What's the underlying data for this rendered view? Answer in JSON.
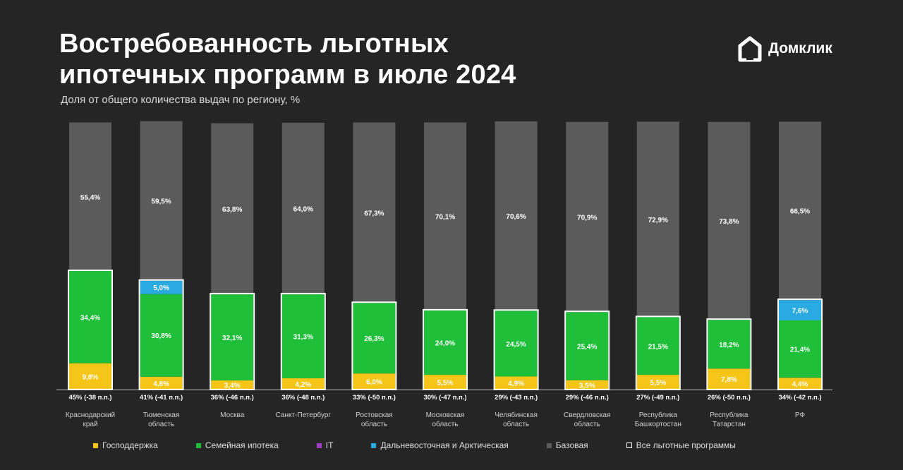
{
  "header": {
    "title": "Востребованность льготных\nипотечных программ в июле 2024",
    "subtitle": "Доля от общего количества выдач по региону, %"
  },
  "logo": {
    "text": "Домклик",
    "icon": "domclick-house-icon"
  },
  "colors": {
    "background": "#252525",
    "gosdderzhka": "#f5c518",
    "semeinaya": "#1fbf3a",
    "it": "#9b3fc0",
    "dalnevost": "#29abe2",
    "bazovaya": "#5b5b5b",
    "all_lgotnye_outline": "#ffffff"
  },
  "chart_data": {
    "type": "bar",
    "stacked": true,
    "unit": "%",
    "ylim": [
      0,
      100
    ],
    "categories": [
      "Краснодарский\nкрай",
      "Тюменская\nобласть",
      "Москва",
      "Санкт-Петербург",
      "Ростовская\nобласть",
      "Московская\nобласть",
      "Челябинская\nобласть",
      "Свердловская\nобласть",
      "Республика\nБашкортостан",
      "Республика\nТатарстан",
      "РФ"
    ],
    "totals_labels": [
      "45% (-38 п.п.)",
      "41% (-41 п.п.)",
      "36% (-46 п.п.)",
      "36% (-48 п.п.)",
      "33% (-50 п.п.)",
      "30% (-47 п.п.)",
      "29% (-43 п.п.)",
      "29% (-46 п.п.)",
      "27% (-49 п.п.)",
      "26% (-50 п.п.)",
      "34% (-42 п.п.)"
    ],
    "series": [
      {
        "name": "Господдержка",
        "key": "gosdderzhka",
        "values": [
          9.8,
          4.8,
          3.4,
          4.2,
          6.0,
          5.5,
          4.9,
          3.5,
          5.5,
          7.8,
          4.4
        ],
        "labels": [
          "9,8%",
          "4,8%",
          "3,4%",
          "4,2%",
          "6,0%",
          "5,5%",
          "4,9%",
          "3,5%",
          "5,5%",
          "7,8%",
          "4,4%"
        ]
      },
      {
        "name": "Семейная ипотека",
        "key": "semeinaya",
        "values": [
          34.4,
          30.8,
          32.1,
          31.3,
          26.3,
          24.0,
          24.5,
          25.4,
          21.5,
          18.2,
          21.4
        ],
        "labels": [
          "34,4%",
          "30,8%",
          "32,1%",
          "31,3%",
          "26,3%",
          "24,0%",
          "24,5%",
          "25,4%",
          "21,5%",
          "18,2%",
          "21,4%"
        ]
      },
      {
        "name": "IT",
        "key": "it",
        "values": [
          0,
          0,
          0,
          0,
          0,
          0,
          0,
          0,
          0,
          0,
          0
        ],
        "labels": [
          "",
          "",
          "",
          "",
          "",
          "",
          "",
          "",
          "",
          "",
          ""
        ]
      },
      {
        "name": "Дальневосточная и Арктическая",
        "key": "dalnevost",
        "values": [
          0,
          5.0,
          0,
          0,
          0,
          0,
          0,
          0,
          0,
          0,
          7.6
        ],
        "labels": [
          "",
          "5,0%",
          "",
          "",
          "",
          "",
          "",
          "",
          "",
          "",
          "7,6%"
        ]
      },
      {
        "name": "Базовая",
        "key": "bazovaya",
        "values": [
          55.4,
          59.5,
          63.8,
          64.0,
          67.3,
          70.1,
          70.6,
          70.9,
          72.9,
          73.8,
          66.5
        ],
        "labels": [
          "55,4%",
          "59,5%",
          "63,8%",
          "64,0%",
          "67,3%",
          "70,1%",
          "70,6%",
          "70,9%",
          "72,9%",
          "73,8%",
          "66,5%"
        ]
      }
    ],
    "legend": {
      "placement": "bottom",
      "items": [
        {
          "label": "Господдержка",
          "key": "gosdderzhka"
        },
        {
          "label": "Семейная ипотека",
          "key": "semeinaya"
        },
        {
          "label": "IT",
          "key": "it"
        },
        {
          "label": "Дальневосточная и Арктическая",
          "key": "dalnevost"
        },
        {
          "label": "Базовая",
          "key": "bazovaya"
        },
        {
          "label": "Все льготные программы",
          "key": "all_lgotnye_outline"
        }
      ]
    }
  }
}
